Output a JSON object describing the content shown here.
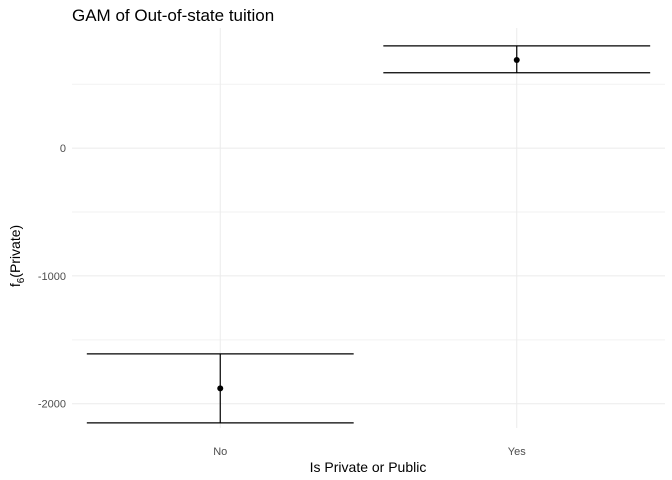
{
  "chart_data": {
    "type": "scatter",
    "title": "GAM of Out-of-state tuition",
    "xlabel": "Is Private or Public",
    "ylabel": {
      "main": "f",
      "subscript": "6",
      "suffix": "(Private)"
    },
    "categories": [
      "No",
      "Yes"
    ],
    "points": [
      {
        "x": "No",
        "y": -1880,
        "ymin": -2150,
        "ymax": -1610
      },
      {
        "x": "Yes",
        "y": 690,
        "ymin": 590,
        "ymax": 800
      }
    ],
    "yticks": [
      0,
      -1000,
      -2000
    ],
    "ytick_labels": [
      "0",
      "-1000",
      "-2000"
    ],
    "ylim": [
      -2190,
      940
    ],
    "grid": true
  }
}
